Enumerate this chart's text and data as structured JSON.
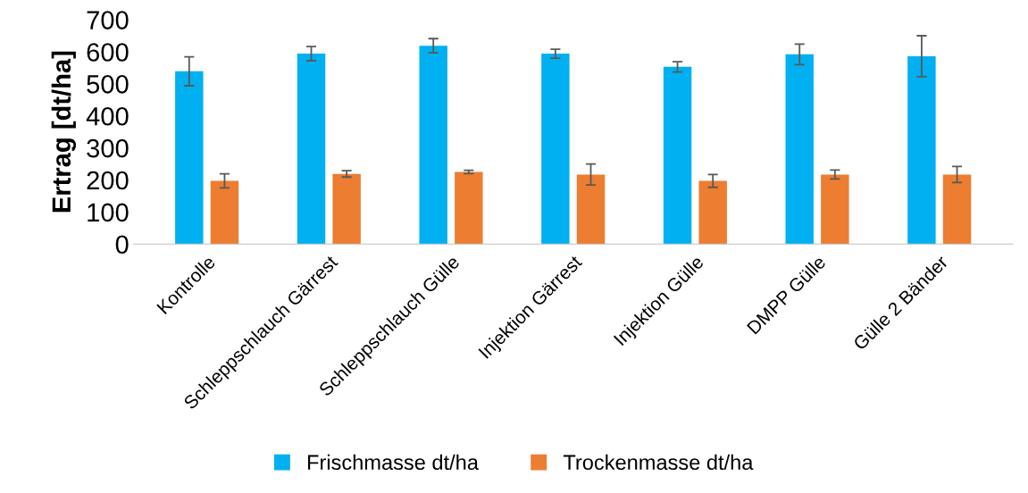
{
  "chart_data": {
    "type": "bar",
    "ylabel": "Ertrag [dt/ha]",
    "categories": [
      "Kontrolle",
      "Schleppschlauch Gärrest",
      "Schleppschlauch Gülle",
      "Injektion Gärrest",
      "Injektion Gülle",
      "DMPP Gülle",
      "Gülle 2 Bänder"
    ],
    "series": [
      {
        "name": "Frischmasse dt/ha",
        "color": "#00b0f0",
        "values": [
          539,
          594,
          619,
          594,
          553,
          592,
          586
        ],
        "errors": [
          45,
          22,
          22,
          14,
          16,
          32,
          64
        ]
      },
      {
        "name": "Trockenmasse dt/ha",
        "color": "#ed7d31",
        "values": [
          197,
          219,
          225,
          217,
          197,
          217,
          217
        ],
        "errors": [
          22,
          10,
          5,
          33,
          20,
          14,
          25
        ]
      }
    ],
    "ylim": [
      0,
      700
    ],
    "yticks": [
      0,
      100,
      200,
      300,
      400,
      500,
      600,
      700
    ],
    "grid": false,
    "legend": "bottom"
  }
}
